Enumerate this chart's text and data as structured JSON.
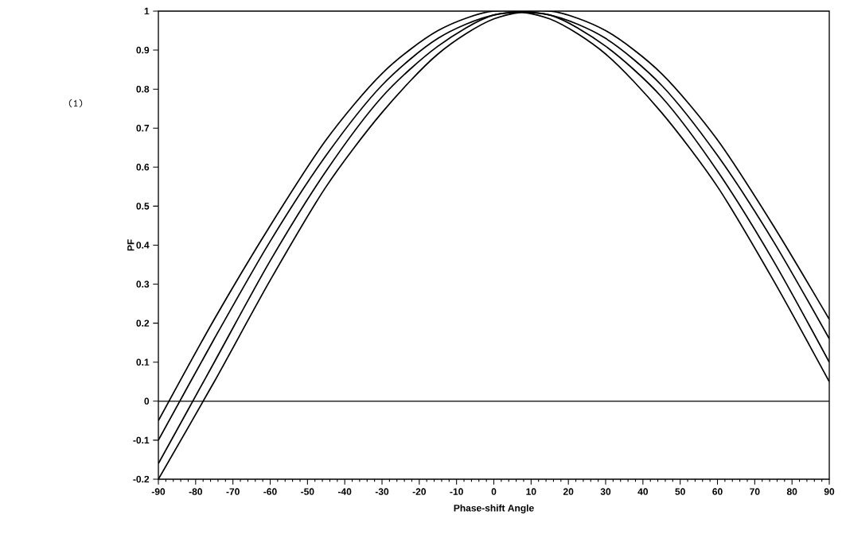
{
  "chart_data": {
    "type": "line",
    "xlabel": "Phase-shift Angle",
    "ylabel": "PF",
    "annotations": [
      "(1)"
    ],
    "x": [
      -90,
      -75,
      -60,
      -45,
      -30,
      -15,
      0,
      15,
      30,
      45,
      60,
      75,
      90
    ],
    "series": [
      {
        "color": "#000000",
        "values": [
          -0.05,
          0.21,
          0.45,
          0.67,
          0.84,
          0.95,
          1.0,
          0.98,
          0.89,
          0.74,
          0.55,
          0.31,
          0.05
        ]
      },
      {
        "color": "#000000",
        "values": [
          -0.1,
          0.16,
          0.41,
          0.63,
          0.81,
          0.93,
          0.99,
          0.99,
          0.91,
          0.78,
          0.59,
          0.36,
          0.1
        ]
      },
      {
        "color": "#000000",
        "values": [
          -0.16,
          0.1,
          0.36,
          0.59,
          0.78,
          0.91,
          0.99,
          0.99,
          0.93,
          0.81,
          0.63,
          0.41,
          0.16
        ]
      },
      {
        "color": "#000000",
        "values": [
          -0.2,
          0.05,
          0.31,
          0.55,
          0.74,
          0.89,
          0.98,
          1.0,
          0.95,
          0.84,
          0.67,
          0.45,
          0.21
        ]
      }
    ],
    "xlim": [
      -90,
      90
    ],
    "ylim": [
      -0.2,
      1
    ],
    "xticks": [
      -90,
      -80,
      -70,
      -60,
      -50,
      -40,
      -30,
      -20,
      -10,
      0,
      10,
      20,
      30,
      40,
      50,
      60,
      70,
      80,
      90
    ],
    "yticks": [
      -0.2,
      -0.1,
      0,
      0.1,
      0.2,
      0.3,
      0.4,
      0.5,
      0.6,
      0.7,
      0.8,
      0.9,
      1
    ],
    "ref_lines": [
      {
        "axis": "y",
        "value": 0,
        "color": "#000000"
      }
    ],
    "grid": false,
    "marker": "none",
    "line_style": "solid"
  }
}
